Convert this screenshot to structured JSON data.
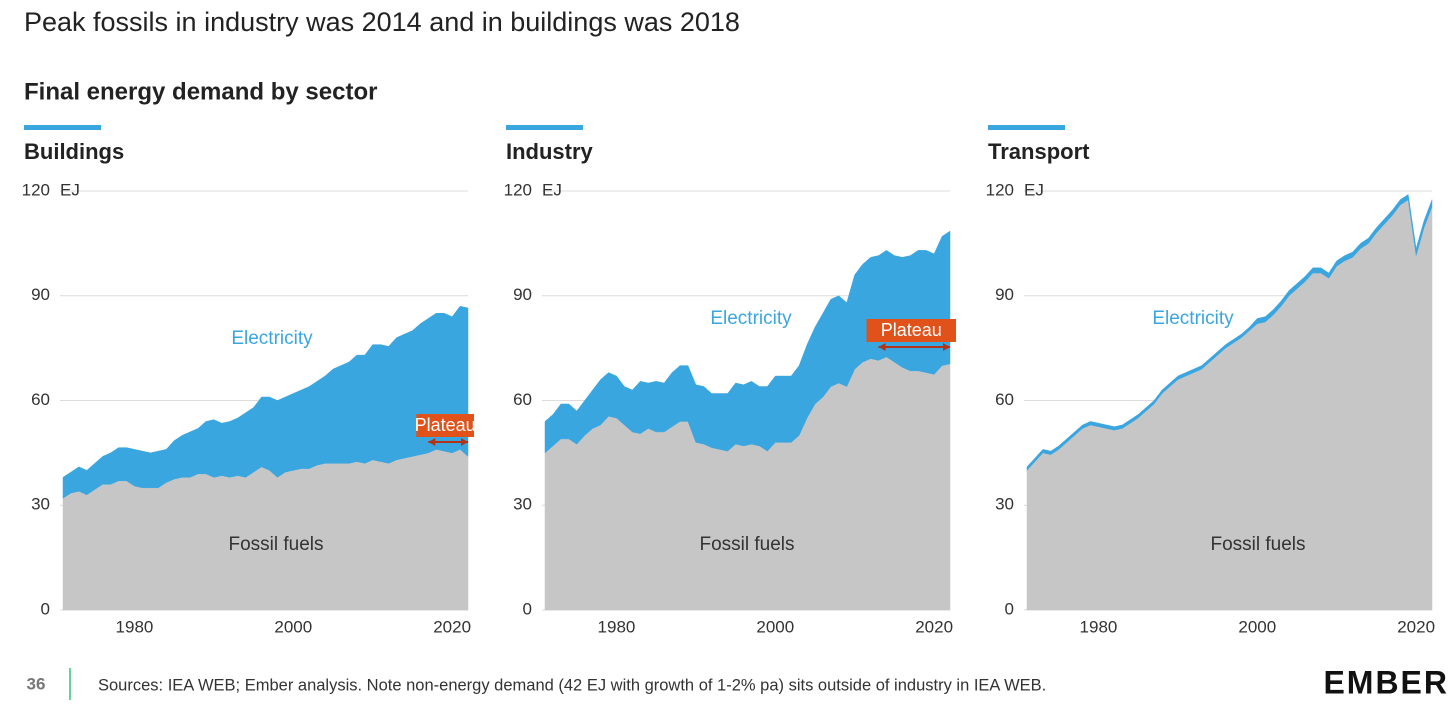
{
  "page": {
    "title": "Peak fossils in industry was 2014 and in buildings was 2018",
    "subtitle": "Final energy demand by sector",
    "page_number": "36",
    "source": "Sources: IEA WEB; Ember analysis. Note non-energy demand (42 EJ with growth of 1-2% pa) sits outside of industry in IEA WEB.",
    "logo": "EMBER"
  },
  "chart_data": [
    {
      "type": "stacked-area",
      "title": "Buildings",
      "y_unit": "EJ",
      "x": [
        1971,
        1972,
        1973,
        1974,
        1975,
        1976,
        1977,
        1978,
        1979,
        1980,
        1981,
        1982,
        1983,
        1984,
        1985,
        1986,
        1987,
        1988,
        1989,
        1990,
        1991,
        1992,
        1993,
        1994,
        1995,
        1996,
        1997,
        1998,
        1999,
        2000,
        2001,
        2002,
        2003,
        2004,
        2005,
        2006,
        2007,
        2008,
        2009,
        2010,
        2011,
        2012,
        2013,
        2014,
        2015,
        2016,
        2017,
        2018,
        2019,
        2020,
        2021,
        2022
      ],
      "xlim": [
        1971,
        2022
      ],
      "xticks": [
        1980,
        2000,
        2020
      ],
      "ylim": [
        0,
        120
      ],
      "yticks": [
        0,
        30,
        60,
        90,
        120
      ],
      "grid": true,
      "series": [
        {
          "name": "Fossil fuels",
          "color": "#c6c6c6",
          "values": [
            32,
            33.5,
            34,
            33,
            34.5,
            36,
            36,
            37,
            37,
            35.5,
            35,
            35,
            35,
            36.5,
            37.5,
            38,
            38,
            39,
            39,
            38,
            38.5,
            38,
            38.5,
            38,
            39.5,
            41,
            40,
            38,
            39.5,
            40,
            40.5,
            40.5,
            41.5,
            42,
            42,
            42,
            42,
            42.5,
            42,
            43,
            42.5,
            42,
            43,
            43.5,
            44,
            44.5,
            45,
            46,
            45.5,
            45,
            46,
            44
          ]
        },
        {
          "name": "Electricity",
          "color": "#3aa6e0",
          "values": [
            6,
            6,
            7,
            7,
            7.5,
            8,
            9,
            9.5,
            9.5,
            10.5,
            10.5,
            10,
            10.5,
            9.5,
            11,
            12,
            13,
            13,
            15,
            16.5,
            15,
            16,
            16.5,
            18.5,
            18.5,
            20,
            21,
            22,
            21.5,
            22,
            22.5,
            23.5,
            24,
            25,
            27,
            28,
            29,
            30.5,
            31,
            33,
            33.5,
            33.5,
            35,
            35.5,
            36,
            37.5,
            38.5,
            39,
            39.5,
            39,
            41,
            42.5
          ]
        }
      ],
      "annotation": {
        "text": "Plateau",
        "x": [
          2017,
          2022
        ]
      }
    },
    {
      "type": "stacked-area",
      "title": "Industry",
      "y_unit": "EJ",
      "x": [
        1971,
        1972,
        1973,
        1974,
        1975,
        1976,
        1977,
        1978,
        1979,
        1980,
        1981,
        1982,
        1983,
        1984,
        1985,
        1986,
        1987,
        1988,
        1989,
        1990,
        1991,
        1992,
        1993,
        1994,
        1995,
        1996,
        1997,
        1998,
        1999,
        2000,
        2001,
        2002,
        2003,
        2004,
        2005,
        2006,
        2007,
        2008,
        2009,
        2010,
        2011,
        2012,
        2013,
        2014,
        2015,
        2016,
        2017,
        2018,
        2019,
        2020,
        2021,
        2022
      ],
      "xlim": [
        1971,
        2022
      ],
      "xticks": [
        1980,
        2000,
        2020
      ],
      "ylim": [
        0,
        120
      ],
      "yticks": [
        0,
        30,
        60,
        90,
        120
      ],
      "grid": true,
      "series": [
        {
          "name": "Fossil fuels",
          "color": "#c6c6c6",
          "values": [
            45,
            47,
            49,
            49,
            47.5,
            50,
            52,
            53,
            55.5,
            55,
            53,
            51,
            50.5,
            52,
            51,
            51,
            52.5,
            54,
            54,
            48,
            47.5,
            46.5,
            46,
            45.5,
            47.5,
            47,
            47.5,
            47,
            45.5,
            48,
            48,
            48,
            50,
            55,
            59,
            61,
            64,
            65,
            64,
            69,
            71,
            72,
            71.5,
            72.5,
            71,
            69.5,
            68.5,
            68.5,
            68,
            67.5,
            70,
            70.5
          ]
        },
        {
          "name": "Electricity",
          "color": "#3aa6e0",
          "values": [
            9,
            9,
            10,
            10,
            9.5,
            10,
            11,
            13,
            12.5,
            12,
            11,
            12,
            15,
            13,
            14.5,
            14,
            15.5,
            16,
            16,
            16.5,
            16.5,
            15.5,
            16,
            16.5,
            17.5,
            17.5,
            18,
            17,
            18.5,
            19,
            19,
            19,
            20,
            21,
            22,
            24,
            25,
            25,
            24,
            27,
            28,
            29,
            30,
            30.5,
            30.5,
            31.5,
            33,
            34.5,
            35,
            34.5,
            37,
            38
          ]
        }
      ],
      "annotation": {
        "text": "Plateau",
        "x": [
          2013,
          2022
        ]
      }
    },
    {
      "type": "stacked-area",
      "title": "Transport",
      "y_unit": "EJ",
      "x": [
        1971,
        1972,
        1973,
        1974,
        1975,
        1976,
        1977,
        1978,
        1979,
        1980,
        1981,
        1982,
        1983,
        1984,
        1985,
        1986,
        1987,
        1988,
        1989,
        1990,
        1991,
        1992,
        1993,
        1994,
        1995,
        1996,
        1997,
        1998,
        1999,
        2000,
        2001,
        2002,
        2003,
        2004,
        2005,
        2006,
        2007,
        2008,
        2009,
        2010,
        2011,
        2012,
        2013,
        2014,
        2015,
        2016,
        2017,
        2018,
        2019,
        2020,
        2021,
        2022
      ],
      "xlim": [
        1971,
        2022
      ],
      "xticks": [
        1980,
        2000,
        2020
      ],
      "ylim": [
        0,
        120
      ],
      "yticks": [
        0,
        30,
        60,
        90,
        120
      ],
      "grid": true,
      "series": [
        {
          "name": "Fossil fuels",
          "color": "#c6c6c6",
          "values": [
            40,
            42.5,
            45,
            44.5,
            46,
            48,
            50,
            52,
            53,
            52.5,
            52,
            51.5,
            52,
            53.5,
            55,
            57,
            59,
            62,
            64,
            66,
            67,
            68,
            69,
            71,
            73,
            75,
            76.5,
            78,
            80,
            82,
            82.5,
            84.5,
            87,
            90,
            92,
            94,
            96.5,
            96.5,
            95,
            98.5,
            100,
            101,
            103.5,
            105,
            108,
            110.5,
            113,
            116,
            117.5,
            101.5,
            109.5,
            115.5
          ]
        },
        {
          "name": "Electricity",
          "color": "#3aa6e0",
          "values": [
            1,
            1,
            1,
            1,
            1,
            1,
            1,
            1,
            1,
            1,
            1,
            1,
            1,
            1,
            1,
            1,
            1,
            1,
            1,
            1,
            1,
            1,
            1,
            1,
            1,
            1,
            1,
            1,
            1,
            1.5,
            1.5,
            1.5,
            1.5,
            1.5,
            1.5,
            1.5,
            1.5,
            1.5,
            1.5,
            1.5,
            1.5,
            1.5,
            1.5,
            1.5,
            1.5,
            1.5,
            1.5,
            1.5,
            1.5,
            2,
            2,
            2
          ]
        }
      ]
    }
  ]
}
